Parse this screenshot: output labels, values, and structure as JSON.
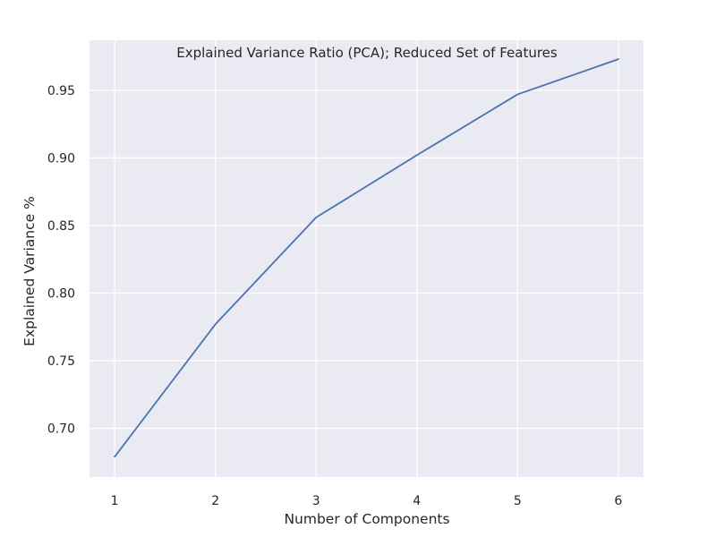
{
  "chart_data": {
    "type": "line",
    "title": "Explained Variance Ratio (PCA); Reduced Set of Features",
    "xlabel": "Number of Components",
    "ylabel": "Explained Variance %",
    "x": [
      1,
      2,
      3,
      4,
      5,
      6
    ],
    "series": [
      {
        "values": [
          0.679,
          0.777,
          0.856,
          0.902,
          0.947,
          0.973
        ],
        "color": "#4c72b0"
      }
    ],
    "xlim": [
      0.75,
      6.25
    ],
    "ylim": [
      0.664,
      0.987
    ],
    "xticks": [
      "1",
      "2",
      "3",
      "4",
      "5",
      "6"
    ],
    "yticks": [
      "0.70",
      "0.75",
      "0.80",
      "0.85",
      "0.90",
      "0.95"
    ],
    "grid": true,
    "legend": "none",
    "colors": {
      "plot_background": "#eaeaf2",
      "grid": "#ffffff",
      "line": "#4c72b0",
      "text": "#262626"
    }
  }
}
